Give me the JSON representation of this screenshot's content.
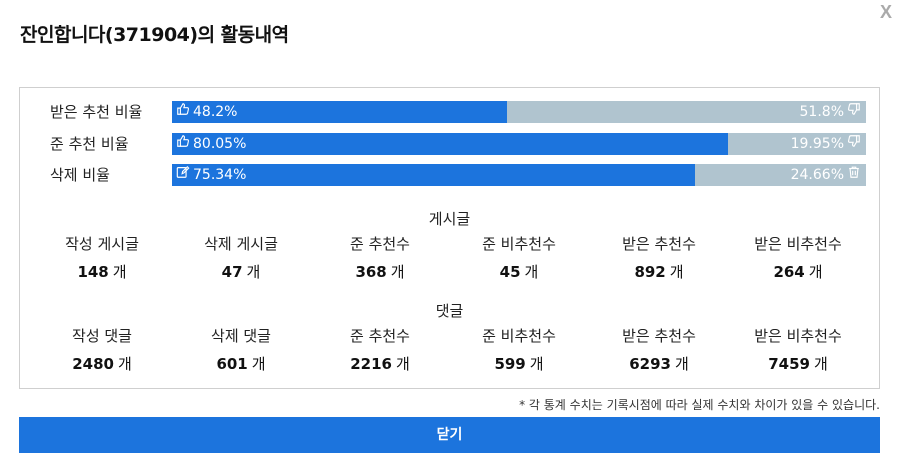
{
  "dialog": {
    "title": "잔인합니다(371904)의 활동내역",
    "close_x": "X",
    "close_button": "닫기",
    "notice": "* 각 통계 수치는 기록시점에 따라 실제 수치와 차이가 있을 수 있습니다."
  },
  "bars": [
    {
      "label": "받은 추천 비율",
      "left_value": "48.2%",
      "right_value": "51.8%",
      "left_icon": "thumbs-up-icon",
      "right_icon": "thumbs-down-icon",
      "fill_percent": 48.2
    },
    {
      "label": "준 추천 비율",
      "left_value": "80.05%",
      "right_value": "19.95%",
      "left_icon": "thumbs-up-icon",
      "right_icon": "thumbs-down-icon",
      "fill_percent": 80.05
    },
    {
      "label": "삭제 비율",
      "left_value": "75.34%",
      "right_value": "24.66%",
      "left_icon": "edit-icon",
      "right_icon": "trash-icon",
      "fill_percent": 75.34
    }
  ],
  "posts": {
    "title": "게시글",
    "unit": "개",
    "stats": [
      {
        "label": "작성 게시글",
        "value": "148"
      },
      {
        "label": "삭제 게시글",
        "value": "47"
      },
      {
        "label": "준 추천수",
        "value": "368"
      },
      {
        "label": "준 비추천수",
        "value": "45"
      },
      {
        "label": "받은 추천수",
        "value": "892"
      },
      {
        "label": "받은 비추천수",
        "value": "264"
      }
    ]
  },
  "comments": {
    "title": "댓글",
    "unit": "개",
    "stats": [
      {
        "label": "작성 댓글",
        "value": "2480"
      },
      {
        "label": "삭제 댓글",
        "value": "601"
      },
      {
        "label": "준 추천수",
        "value": "2216"
      },
      {
        "label": "준 비추천수",
        "value": "599"
      },
      {
        "label": "받은 추천수",
        "value": "6293"
      },
      {
        "label": "받은 비추천수",
        "value": "7459"
      }
    ]
  },
  "colors": {
    "accent": "#1c74dd",
    "track": "#b0c4cf"
  }
}
